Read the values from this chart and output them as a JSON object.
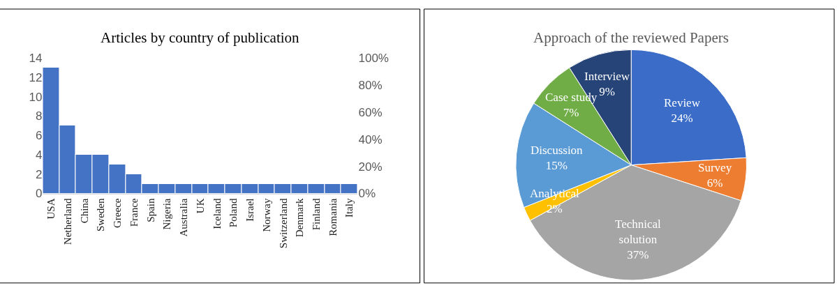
{
  "chart_data": [
    {
      "type": "bar",
      "title": "Articles by country of publication",
      "categories": [
        "USA",
        "Netherland",
        "China",
        "Sweden",
        "Greece",
        "France",
        "Spain",
        "Nigeria",
        "Australia",
        "UK",
        "Iceland",
        "Poland",
        "Israel",
        "Norway",
        "Switzerland",
        "Denmark",
        "Finland",
        "Romania",
        "Italy"
      ],
      "values": [
        13,
        7,
        4,
        4,
        3,
        2,
        1,
        1,
        1,
        1,
        1,
        1,
        1,
        1,
        1,
        1,
        1,
        1,
        1
      ],
      "color": "#4472c4",
      "ylim": [
        0,
        14
      ],
      "yticks": [
        0,
        2,
        4,
        6,
        8,
        10,
        12,
        14
      ],
      "y2lim": [
        0,
        100
      ],
      "y2ticks": [
        {
          "value": 0,
          "label": "0%"
        },
        {
          "value": 20,
          "label": "20%"
        },
        {
          "value": 40,
          "label": "40%"
        },
        {
          "value": 60,
          "label": "60%"
        },
        {
          "value": 80,
          "label": "80%"
        },
        {
          "value": 100,
          "label": "100%"
        }
      ],
      "legend": false
    },
    {
      "type": "pie",
      "title": "Approach of the reviewed Papers",
      "categories": [
        "Review",
        "Survey",
        "Technical solution",
        "Analytical",
        "Discussion",
        "Case study",
        "Interview"
      ],
      "values": [
        24,
        6,
        37,
        2,
        15,
        7,
        9
      ],
      "value_labels": [
        "24%",
        "6%",
        "37%",
        "2%",
        "15%",
        "7%",
        "9%"
      ],
      "colors": [
        "#3a6cc8",
        "#ed7d31",
        "#a5a5a5",
        "#ffc000",
        "#5b9bd5",
        "#70ad47",
        "#264478"
      ],
      "legend": false
    }
  ]
}
